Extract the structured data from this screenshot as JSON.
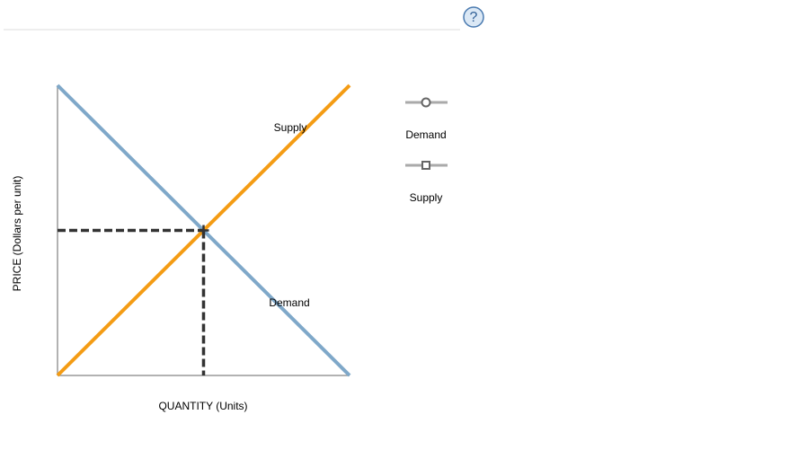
{
  "help_icon": "?",
  "chart_data": {
    "type": "line",
    "x_label": "QUANTITY (Units)",
    "y_label": "PRICE (Dollars per unit)",
    "x": [
      0,
      10
    ],
    "xlim": [
      0,
      10
    ],
    "ylim": [
      0,
      10
    ],
    "series": [
      {
        "name": "Demand",
        "color": "#7fa8c9",
        "values": [
          10,
          0
        ]
      },
      {
        "name": "Supply",
        "color": "#f49c14",
        "values": [
          0,
          10
        ]
      }
    ],
    "equilibrium": {
      "x": 5,
      "y": 5
    }
  }
}
